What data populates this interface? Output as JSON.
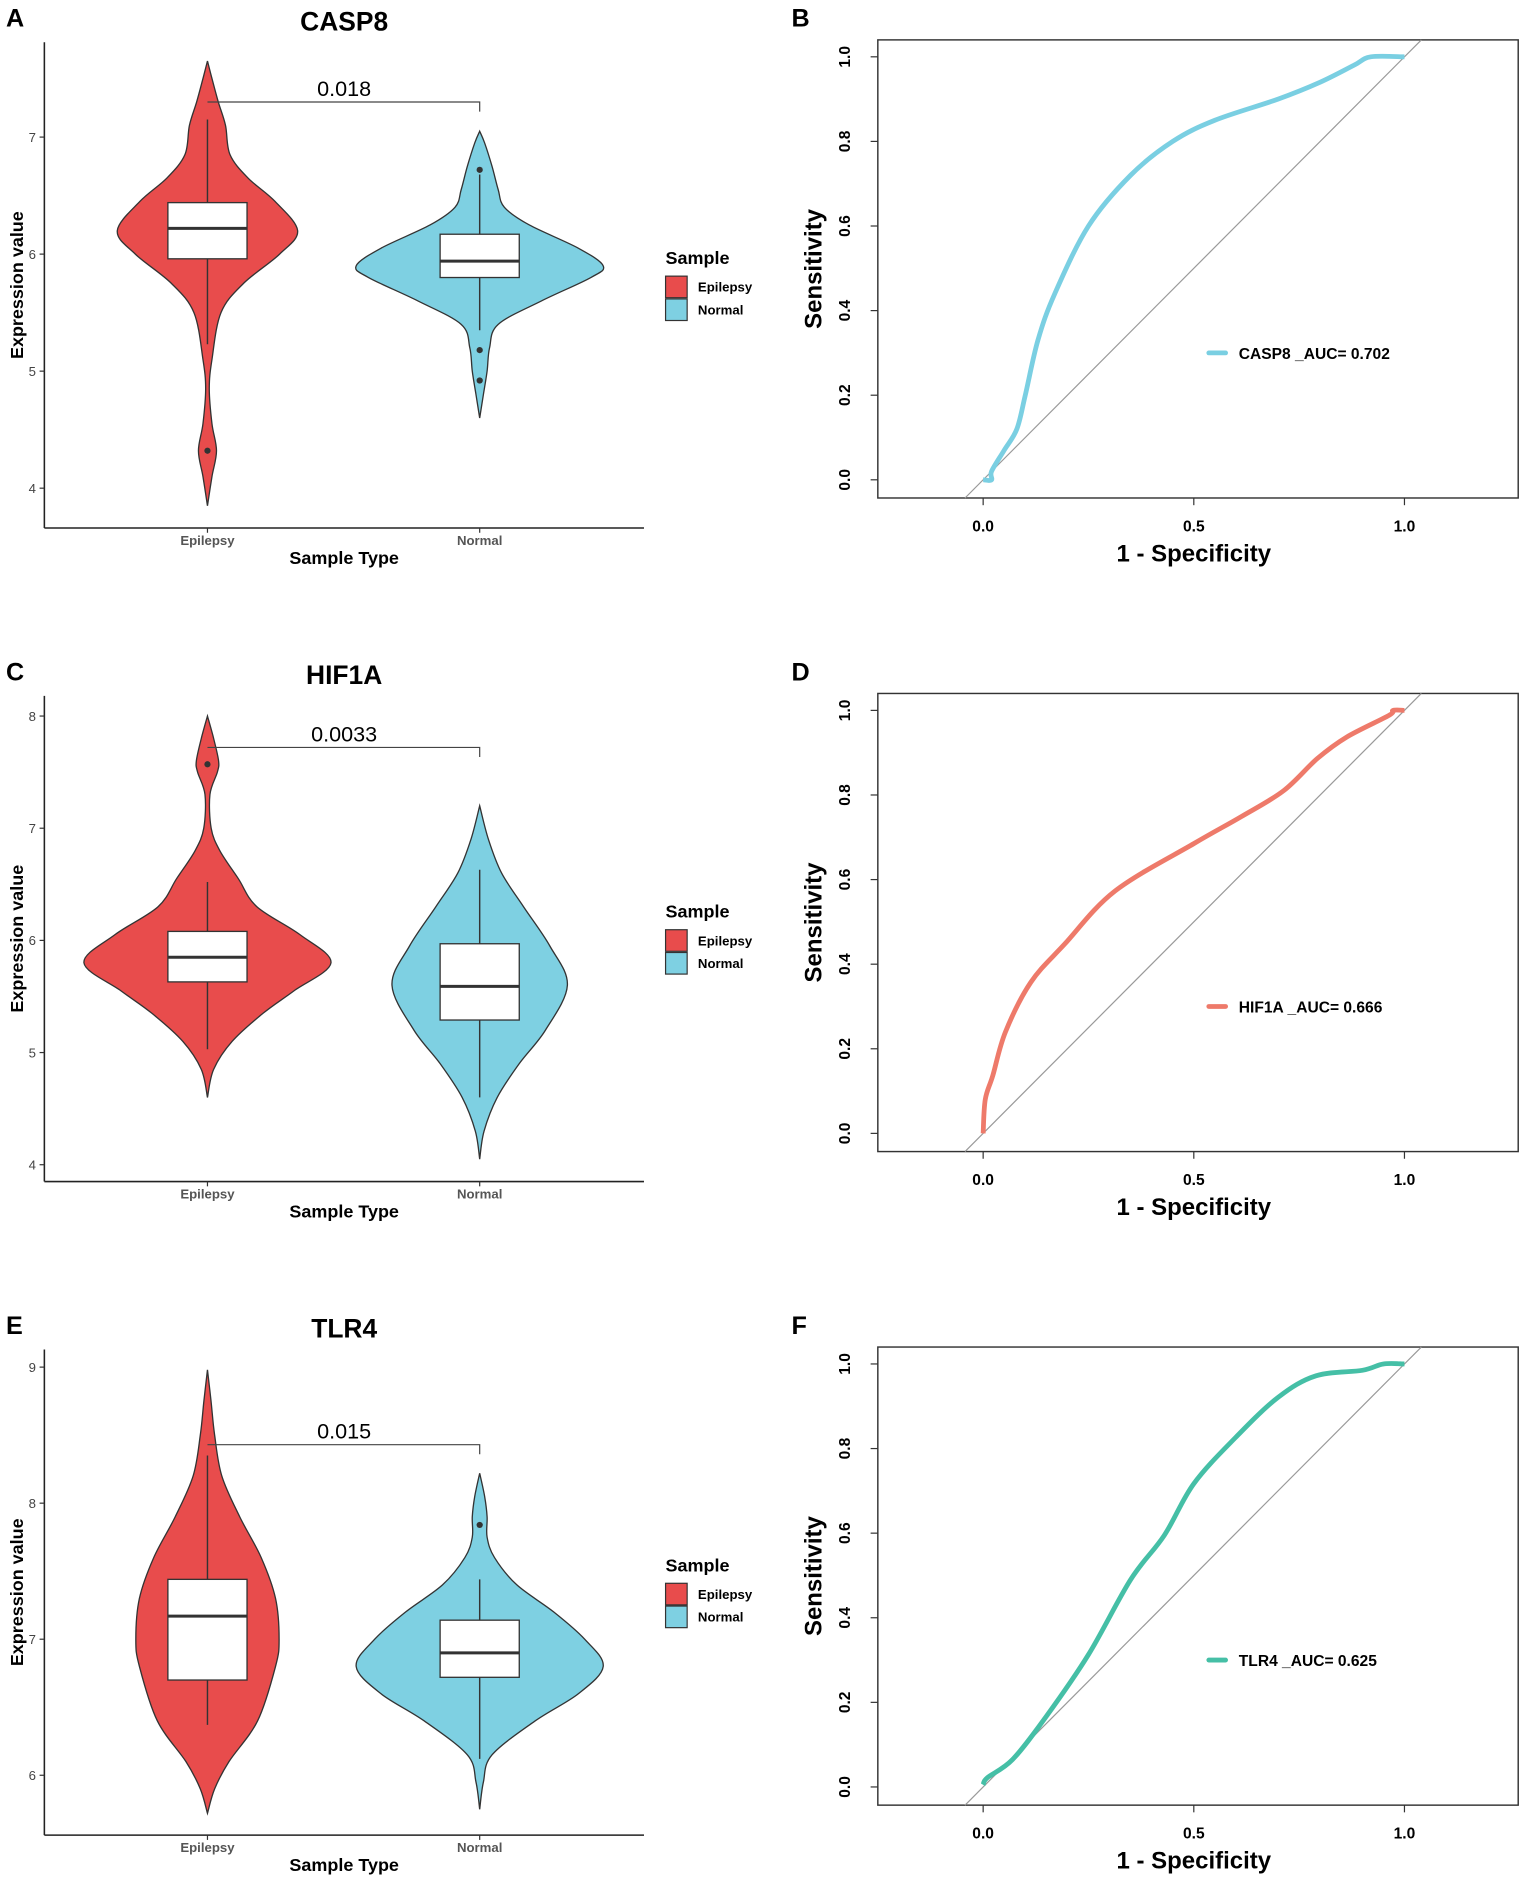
{
  "colors": {
    "epilepsy": "#E84C4C",
    "normal": "#7ED0E2",
    "roc_casp8": "#7ACFE2",
    "roc_hif1a": "#EE7A6A",
    "roc_tlr4": "#45BFA6"
  },
  "chart_data": [
    {
      "panel": "A",
      "type": "violin",
      "title": "CASP8",
      "xlabel": "Sample Type",
      "ylabel": "Expression value",
      "categories": [
        "Epilepsy",
        "Normal"
      ],
      "ylim": [
        3.66,
        7.81
      ],
      "yticks": [
        4,
        5,
        6,
        7
      ],
      "legend": {
        "title": "Sample",
        "entries": [
          "Epilepsy",
          "Normal"
        ],
        "placement": "right"
      },
      "pvalue": {
        "label": "0.018",
        "y": 7.3
      },
      "groups": [
        {
          "name": "Epilepsy",
          "peak": 0.73,
          "box": {
            "lower_whisker": 5.23,
            "q1": 5.96,
            "median": 6.22,
            "q3": 6.44,
            "upper_whisker": 7.15
          },
          "outliers": [
            4.32
          ],
          "density": [
            [
              3.85,
              0
            ],
            [
              4.1,
              0.05
            ],
            [
              4.32,
              0.1
            ],
            [
              4.55,
              0.05
            ],
            [
              4.85,
              0.02
            ],
            [
              5.1,
              0.05
            ],
            [
              5.5,
              0.15
            ],
            [
              5.75,
              0.4
            ],
            [
              6.0,
              0.8
            ],
            [
              6.2,
              1.0
            ],
            [
              6.45,
              0.75
            ],
            [
              6.65,
              0.45
            ],
            [
              6.85,
              0.25
            ],
            [
              7.1,
              0.2
            ],
            [
              7.3,
              0.12
            ],
            [
              7.5,
              0.05
            ],
            [
              7.65,
              0
            ]
          ]
        },
        {
          "name": "Normal",
          "peak": 1.0,
          "box": {
            "lower_whisker": 5.35,
            "q1": 5.8,
            "median": 5.94,
            "q3": 6.17,
            "upper_whisker": 6.68
          },
          "outliers": [
            6.72,
            5.18,
            4.92
          ],
          "density": [
            [
              4.6,
              0
            ],
            [
              4.8,
              0.03
            ],
            [
              5.0,
              0.06
            ],
            [
              5.2,
              0.08
            ],
            [
              5.4,
              0.15
            ],
            [
              5.6,
              0.5
            ],
            [
              5.8,
              0.9
            ],
            [
              5.9,
              1.0
            ],
            [
              6.05,
              0.8
            ],
            [
              6.25,
              0.4
            ],
            [
              6.4,
              0.2
            ],
            [
              6.55,
              0.15
            ],
            [
              6.75,
              0.1
            ],
            [
              6.95,
              0.04
            ],
            [
              7.05,
              0
            ]
          ]
        }
      ]
    },
    {
      "panel": "B",
      "type": "line",
      "xlabel": "1 - Specificity",
      "ylabel": "Sensitivity",
      "xlim": [
        -0.25,
        1.27
      ],
      "ylim": [
        -0.043,
        1.04
      ],
      "xticks": [
        "0.0",
        "0.5",
        "1.0"
      ],
      "yticks": [
        "0.0",
        "0.2",
        "0.4",
        "0.6",
        "0.8",
        "1.0"
      ],
      "reference_line": "y = x",
      "legend": {
        "label": "CASP8 _AUC= 0.702",
        "placement": "center-right"
      },
      "series": [
        {
          "name": "CASP8 _AUC= 0.702",
          "color_key": "roc_casp8",
          "x": [
            0,
            0.02,
            0.02,
            0.05,
            0.08,
            0.1,
            0.13,
            0.17,
            0.25,
            0.35,
            0.45,
            0.55,
            0.7,
            0.8,
            0.88,
            0.92,
            1
          ],
          "y": [
            0,
            0,
            0.02,
            0.07,
            0.12,
            0.2,
            0.33,
            0.44,
            0.6,
            0.72,
            0.8,
            0.85,
            0.9,
            0.94,
            0.98,
            1.0,
            1.0
          ]
        }
      ]
    },
    {
      "panel": "C",
      "type": "violin",
      "title": "HIF1A",
      "xlabel": "Sample Type",
      "ylabel": "Expression value",
      "categories": [
        "Epilepsy",
        "Normal"
      ],
      "ylim": [
        3.85,
        8.18
      ],
      "yticks": [
        4,
        5,
        6,
        7,
        8
      ],
      "legend": {
        "title": "Sample",
        "entries": [
          "Epilepsy",
          "Normal"
        ],
        "placement": "right"
      },
      "pvalue": {
        "label": "0.0033",
        "y": 7.72
      },
      "groups": [
        {
          "name": "Epilepsy",
          "peak": 1.0,
          "box": {
            "lower_whisker": 5.03,
            "q1": 5.63,
            "median": 5.85,
            "q3": 6.08,
            "upper_whisker": 6.52
          },
          "outliers": [
            7.57
          ],
          "density": [
            [
              4.6,
              0
            ],
            [
              4.85,
              0.05
            ],
            [
              5.1,
              0.2
            ],
            [
              5.35,
              0.45
            ],
            [
              5.55,
              0.7
            ],
            [
              5.8,
              1.0
            ],
            [
              6.05,
              0.75
            ],
            [
              6.3,
              0.4
            ],
            [
              6.55,
              0.25
            ],
            [
              6.8,
              0.1
            ],
            [
              7.0,
              0.03
            ],
            [
              7.3,
              0.02
            ],
            [
              7.5,
              0.08
            ],
            [
              7.6,
              0.09
            ],
            [
              7.8,
              0.05
            ],
            [
              8.0,
              0
            ]
          ]
        },
        {
          "name": "Normal",
          "peak": 0.71,
          "box": {
            "lower_whisker": 4.6,
            "q1": 5.29,
            "median": 5.59,
            "q3": 5.97,
            "upper_whisker": 6.63
          },
          "outliers": [],
          "density": [
            [
              4.05,
              0
            ],
            [
              4.3,
              0.05
            ],
            [
              4.6,
              0.2
            ],
            [
              4.9,
              0.45
            ],
            [
              5.2,
              0.75
            ],
            [
              5.6,
              1.0
            ],
            [
              5.95,
              0.8
            ],
            [
              6.3,
              0.5
            ],
            [
              6.6,
              0.25
            ],
            [
              6.9,
              0.1
            ],
            [
              7.2,
              0
            ]
          ]
        }
      ]
    },
    {
      "panel": "D",
      "type": "line",
      "xlabel": "1 - Specificity",
      "ylabel": "Sensitivity",
      "xlim": [
        -0.25,
        1.27
      ],
      "ylim": [
        -0.043,
        1.04
      ],
      "xticks": [
        "0.0",
        "0.5",
        "1.0"
      ],
      "yticks": [
        "0.0",
        "0.2",
        "0.4",
        "0.6",
        "0.8",
        "1.0"
      ],
      "reference_line": "y = x",
      "legend": {
        "label": "HIF1A _AUC= 0.666",
        "placement": "center-right"
      },
      "series": [
        {
          "name": "HIF1A _AUC= 0.666",
          "color_key": "roc_hif1a",
          "x": [
            0,
            0.005,
            0.023,
            0.053,
            0.113,
            0.193,
            0.313,
            0.5,
            0.613,
            0.713,
            0.793,
            0.863,
            0.963,
            0.973,
            1
          ],
          "y": [
            0,
            0.08,
            0.137,
            0.24,
            0.357,
            0.447,
            0.573,
            0.685,
            0.749,
            0.81,
            0.886,
            0.937,
            0.988,
            1.0,
            1.0
          ]
        }
      ]
    },
    {
      "panel": "E",
      "type": "violin",
      "title": "TLR4",
      "xlabel": "Sample Type",
      "ylabel": "Expression value",
      "categories": [
        "Epilepsy",
        "Normal"
      ],
      "ylim": [
        5.56,
        9.13
      ],
      "yticks": [
        6,
        7,
        8,
        9
      ],
      "legend": {
        "title": "Sample",
        "entries": [
          "Epilepsy",
          "Normal"
        ],
        "placement": "right"
      },
      "pvalue": {
        "label": "0.015",
        "y": 8.43
      },
      "groups": [
        {
          "name": "Epilepsy",
          "peak": 0.58,
          "box": {
            "lower_whisker": 6.37,
            "q1": 6.7,
            "median": 7.17,
            "q3": 7.44,
            "upper_whisker": 8.35
          },
          "outliers": [],
          "density": [
            [
              5.72,
              0
            ],
            [
              5.9,
              0.1
            ],
            [
              6.1,
              0.3
            ],
            [
              6.4,
              0.7
            ],
            [
              6.8,
              0.95
            ],
            [
              7.0,
              1.0
            ],
            [
              7.3,
              0.95
            ],
            [
              7.6,
              0.75
            ],
            [
              7.9,
              0.45
            ],
            [
              8.2,
              0.2
            ],
            [
              8.5,
              0.1
            ],
            [
              8.75,
              0.05
            ],
            [
              8.98,
              0
            ]
          ]
        },
        {
          "name": "Normal",
          "peak": 1.0,
          "box": {
            "lower_whisker": 6.12,
            "q1": 6.72,
            "median": 6.9,
            "q3": 7.14,
            "upper_whisker": 7.44
          },
          "outliers": [
            7.84
          ],
          "density": [
            [
              5.75,
              0
            ],
            [
              5.95,
              0.03
            ],
            [
              6.15,
              0.1
            ],
            [
              6.4,
              0.45
            ],
            [
              6.6,
              0.8
            ],
            [
              6.8,
              1.0
            ],
            [
              7.0,
              0.85
            ],
            [
              7.2,
              0.6
            ],
            [
              7.4,
              0.3
            ],
            [
              7.6,
              0.12
            ],
            [
              7.75,
              0.06
            ],
            [
              7.9,
              0.06
            ],
            [
              8.05,
              0.04
            ],
            [
              8.22,
              0
            ]
          ]
        }
      ]
    },
    {
      "panel": "F",
      "type": "line",
      "xlabel": "1 - Specificity",
      "ylabel": "Sensitivity",
      "xlim": [
        -0.25,
        1.27
      ],
      "ylim": [
        -0.043,
        1.04
      ],
      "xticks": [
        "0.0",
        "0.5",
        "1.0"
      ],
      "yticks": [
        "0.0",
        "0.2",
        "0.4",
        "0.6",
        "0.8",
        "1.0"
      ],
      "reference_line": "y = x",
      "legend": {
        "label": "TLR4 _AUC= 0.625",
        "placement": "center-right"
      },
      "series": [
        {
          "name": "TLR4 _AUC= 0.625",
          "color_key": "roc_tlr4",
          "x": [
            0,
            0.01,
            0.07,
            0.15,
            0.25,
            0.35,
            0.43,
            0.5,
            0.6,
            0.7,
            0.79,
            0.9,
            0.95,
            1
          ],
          "y": [
            0.005,
            0.022,
            0.065,
            0.167,
            0.313,
            0.49,
            0.595,
            0.717,
            0.827,
            0.921,
            0.972,
            0.985,
            1.0,
            1.0
          ]
        }
      ]
    }
  ]
}
